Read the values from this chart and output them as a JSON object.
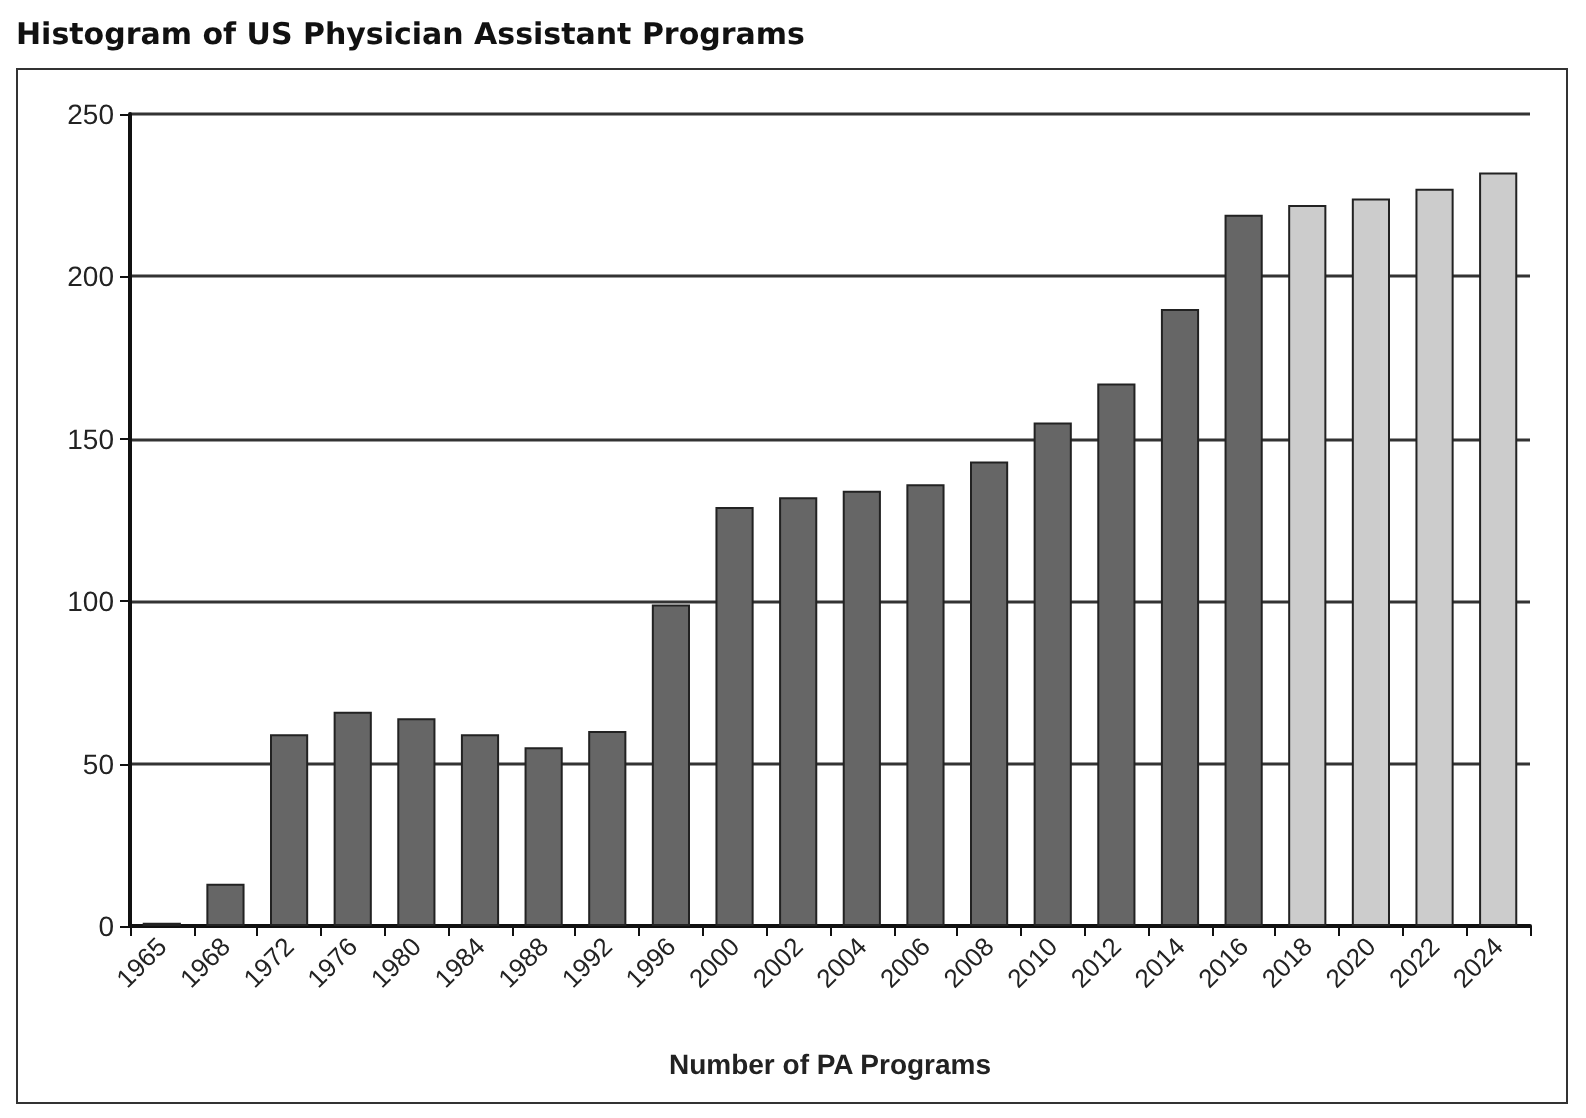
{
  "chart_data": {
    "type": "bar",
    "title": "Histogram of US Physician Assistant Programs",
    "xlabel": "Number of PA Programs",
    "categories": [
      "1965",
      "1968",
      "1972",
      "1976",
      "1980",
      "1984",
      "1988",
      "1992",
      "1996",
      "2000",
      "2002",
      "2004",
      "2006",
      "2008",
      "2010",
      "2012",
      "2014",
      "2016",
      "2018",
      "2020",
      "2022",
      "2024"
    ],
    "values": [
      1,
      13,
      59,
      66,
      64,
      59,
      55,
      60,
      99,
      129,
      132,
      134,
      136,
      143,
      155,
      167,
      190,
      219,
      222,
      224,
      227,
      232
    ],
    "colors": [
      "#666666",
      "#666666",
      "#666666",
      "#666666",
      "#666666",
      "#666666",
      "#666666",
      "#666666",
      "#666666",
      "#666666",
      "#666666",
      "#666666",
      "#666666",
      "#666666",
      "#666666",
      "#666666",
      "#666666",
      "#666666",
      "#cccccc",
      "#cccccc",
      "#cccccc",
      "#cccccc"
    ],
    "ylim": [
      0,
      250
    ],
    "yticks": [
      0,
      50,
      100,
      150,
      200,
      250
    ],
    "grid": "y"
  }
}
